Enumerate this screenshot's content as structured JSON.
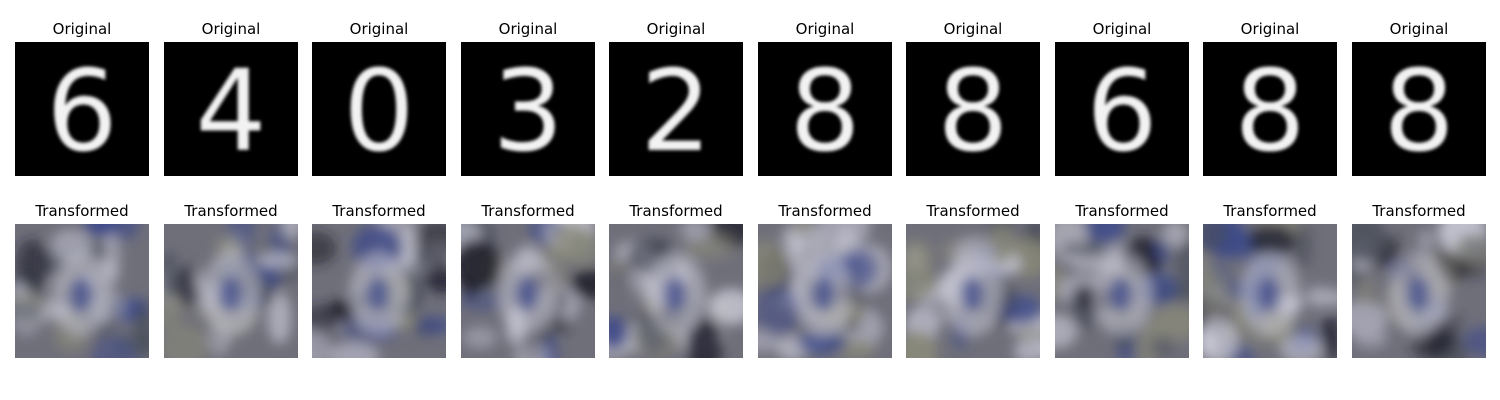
{
  "labels": {
    "original": "Original",
    "transformed": "Transformed"
  },
  "digits": [
    "6",
    "4",
    "0",
    "3",
    "2",
    "8",
    "8",
    "6",
    "8",
    "8"
  ],
  "palette": {
    "digit_background": "#000000",
    "digit_stroke": "#f2f2f2",
    "transformed_base": "#6f6f7a",
    "transformed_dark": "#1d1d2a",
    "transformed_light": "#c9c9d6",
    "transformed_blue": "#3d4a8a"
  }
}
